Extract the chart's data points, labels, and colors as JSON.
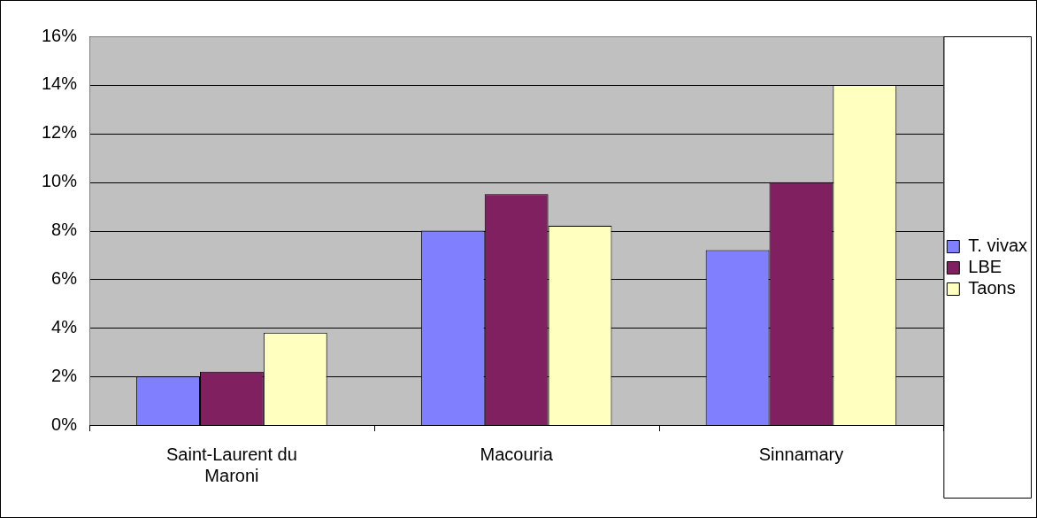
{
  "chart_data": {
    "type": "bar",
    "categories": [
      "Saint-Laurent du Maroni",
      "Macouria",
      "Sinnamary"
    ],
    "series": [
      {
        "name": "T. vivax",
        "color": "#8080ff",
        "values": [
          2,
          8,
          7.2
        ]
      },
      {
        "name": "LBE",
        "color": "#802060",
        "values": [
          2.2,
          9.5,
          10
        ]
      },
      {
        "name": "Taons",
        "color": "#ffffc0",
        "values": [
          3.8,
          8.2,
          14
        ]
      }
    ],
    "ylim": [
      0,
      16
    ],
    "yticks": [
      {
        "value": 0,
        "label": "0%"
      },
      {
        "value": 2,
        "label": "2%"
      },
      {
        "value": 4,
        "label": "4%"
      },
      {
        "value": 6,
        "label": "6%"
      },
      {
        "value": 8,
        "label": "8%"
      },
      {
        "value": 10,
        "label": "10%"
      },
      {
        "value": 12,
        "label": "12%"
      },
      {
        "value": 14,
        "label": "14%"
      },
      {
        "value": 16,
        "label": "16%"
      }
    ],
    "grid": "y",
    "legend": "right"
  }
}
